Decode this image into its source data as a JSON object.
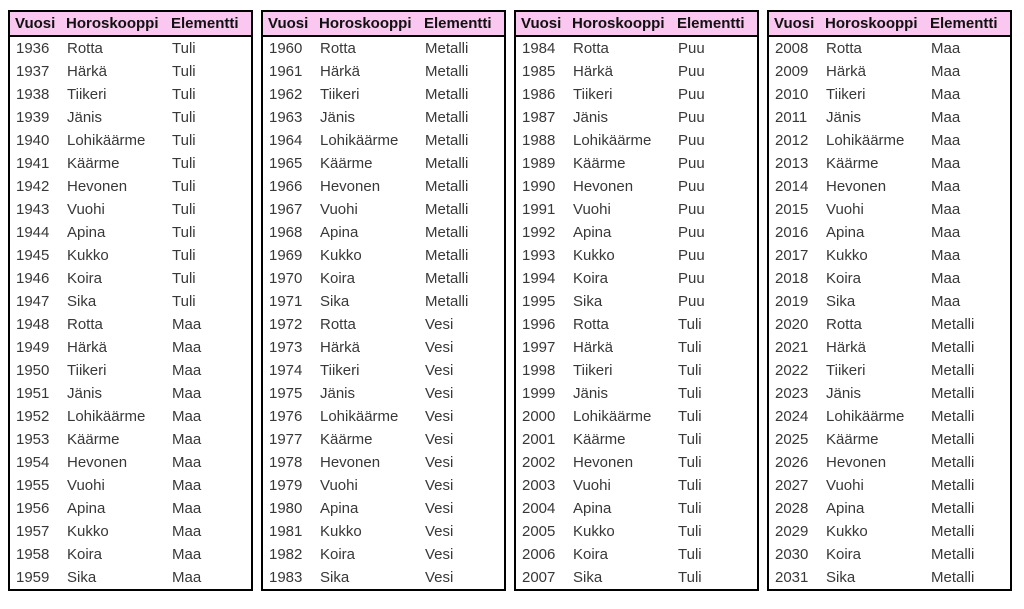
{
  "columns": [
    "Vuosi",
    "Horoskooppi",
    "Elementti"
  ],
  "styles": {
    "header_bg": "#f9c7ef",
    "border_color": "#000000",
    "text_color": "#383838",
    "header_text_color": "#111111"
  },
  "tables": [
    {
      "rows": [
        [
          "1936",
          "Rotta",
          "Tuli"
        ],
        [
          "1937",
          "Härkä",
          "Tuli"
        ],
        [
          "1938",
          "Tiikeri",
          "Tuli"
        ],
        [
          "1939",
          "Jänis",
          "Tuli"
        ],
        [
          "1940",
          "Lohikäärme",
          "Tuli"
        ],
        [
          "1941",
          "Käärme",
          "Tuli"
        ],
        [
          "1942",
          "Hevonen",
          "Tuli"
        ],
        [
          "1943",
          "Vuohi",
          "Tuli"
        ],
        [
          "1944",
          "Apina",
          "Tuli"
        ],
        [
          "1945",
          "Kukko",
          "Tuli"
        ],
        [
          "1946",
          "Koira",
          "Tuli"
        ],
        [
          "1947",
          "Sika",
          "Tuli"
        ],
        [
          "1948",
          "Rotta",
          "Maa"
        ],
        [
          "1949",
          "Härkä",
          "Maa"
        ],
        [
          "1950",
          "Tiikeri",
          "Maa"
        ],
        [
          "1951",
          "Jänis",
          "Maa"
        ],
        [
          "1952",
          "Lohikäärme",
          "Maa"
        ],
        [
          "1953",
          "Käärme",
          "Maa"
        ],
        [
          "1954",
          "Hevonen",
          "Maa"
        ],
        [
          "1955",
          "Vuohi",
          "Maa"
        ],
        [
          "1956",
          "Apina",
          "Maa"
        ],
        [
          "1957",
          "Kukko",
          "Maa"
        ],
        [
          "1958",
          "Koira",
          "Maa"
        ],
        [
          "1959",
          "Sika",
          "Maa"
        ]
      ]
    },
    {
      "rows": [
        [
          "1960",
          "Rotta",
          "Metalli"
        ],
        [
          "1961",
          "Härkä",
          "Metalli"
        ],
        [
          "1962",
          "Tiikeri",
          "Metalli"
        ],
        [
          "1963",
          "Jänis",
          "Metalli"
        ],
        [
          "1964",
          "Lohikäärme",
          "Metalli"
        ],
        [
          "1965",
          "Käärme",
          "Metalli"
        ],
        [
          "1966",
          "Hevonen",
          "Metalli"
        ],
        [
          "1967",
          "Vuohi",
          "Metalli"
        ],
        [
          "1968",
          "Apina",
          "Metalli"
        ],
        [
          "1969",
          "Kukko",
          "Metalli"
        ],
        [
          "1970",
          "Koira",
          "Metalli"
        ],
        [
          "1971",
          "Sika",
          "Metalli"
        ],
        [
          "1972",
          "Rotta",
          "Vesi"
        ],
        [
          "1973",
          "Härkä",
          "Vesi"
        ],
        [
          "1974",
          "Tiikeri",
          "Vesi"
        ],
        [
          "1975",
          "Jänis",
          "Vesi"
        ],
        [
          "1976",
          "Lohikäärme",
          "Vesi"
        ],
        [
          "1977",
          "Käärme",
          "Vesi"
        ],
        [
          "1978",
          "Hevonen",
          "Vesi"
        ],
        [
          "1979",
          "Vuohi",
          "Vesi"
        ],
        [
          "1980",
          "Apina",
          "Vesi"
        ],
        [
          "1981",
          "Kukko",
          "Vesi"
        ],
        [
          "1982",
          "Koira",
          "Vesi"
        ],
        [
          "1983",
          "Sika",
          "Vesi"
        ]
      ]
    },
    {
      "rows": [
        [
          "1984",
          "Rotta",
          "Puu"
        ],
        [
          "1985",
          "Härkä",
          "Puu"
        ],
        [
          "1986",
          "Tiikeri",
          "Puu"
        ],
        [
          "1987",
          "Jänis",
          "Puu"
        ],
        [
          "1988",
          "Lohikäärme",
          "Puu"
        ],
        [
          "1989",
          "Käärme",
          "Puu"
        ],
        [
          "1990",
          "Hevonen",
          "Puu"
        ],
        [
          "1991",
          "Vuohi",
          "Puu"
        ],
        [
          "1992",
          "Apina",
          "Puu"
        ],
        [
          "1993",
          "Kukko",
          "Puu"
        ],
        [
          "1994",
          "Koira",
          "Puu"
        ],
        [
          "1995",
          "Sika",
          "Puu"
        ],
        [
          "1996",
          "Rotta",
          "Tuli"
        ],
        [
          "1997",
          "Härkä",
          "Tuli"
        ],
        [
          "1998",
          "Tiikeri",
          "Tuli"
        ],
        [
          "1999",
          "Jänis",
          "Tuli"
        ],
        [
          "2000",
          "Lohikäärme",
          "Tuli"
        ],
        [
          "2001",
          "Käärme",
          "Tuli"
        ],
        [
          "2002",
          "Hevonen",
          "Tuli"
        ],
        [
          "2003",
          "Vuohi",
          "Tuli"
        ],
        [
          "2004",
          "Apina",
          "Tuli"
        ],
        [
          "2005",
          "Kukko",
          "Tuli"
        ],
        [
          "2006",
          "Koira",
          "Tuli"
        ],
        [
          "2007",
          "Sika",
          "Tuli"
        ]
      ]
    },
    {
      "rows": [
        [
          "2008",
          "Rotta",
          "Maa"
        ],
        [
          "2009",
          "Härkä",
          "Maa"
        ],
        [
          "2010",
          "Tiikeri",
          "Maa"
        ],
        [
          "2011",
          "Jänis",
          "Maa"
        ],
        [
          "2012",
          "Lohikäärme",
          "Maa"
        ],
        [
          "2013",
          "Käärme",
          "Maa"
        ],
        [
          "2014",
          "Hevonen",
          "Maa"
        ],
        [
          "2015",
          "Vuohi",
          "Maa"
        ],
        [
          "2016",
          "Apina",
          "Maa"
        ],
        [
          "2017",
          "Kukko",
          "Maa"
        ],
        [
          "2018",
          "Koira",
          "Maa"
        ],
        [
          "2019",
          "Sika",
          "Maa"
        ],
        [
          "2020",
          "Rotta",
          "Metalli"
        ],
        [
          "2021",
          "Härkä",
          "Metalli"
        ],
        [
          "2022",
          "Tiikeri",
          "Metalli"
        ],
        [
          "2023",
          "Jänis",
          "Metalli"
        ],
        [
          "2024",
          "Lohikäärme",
          "Metalli"
        ],
        [
          "2025",
          "Käärme",
          "Metalli"
        ],
        [
          "2026",
          "Hevonen",
          "Metalli"
        ],
        [
          "2027",
          "Vuohi",
          "Metalli"
        ],
        [
          "2028",
          "Apina",
          "Metalli"
        ],
        [
          "2029",
          "Kukko",
          "Metalli"
        ],
        [
          "2030",
          "Koira",
          "Metalli"
        ],
        [
          "2031",
          "Sika",
          "Metalli"
        ]
      ]
    }
  ]
}
